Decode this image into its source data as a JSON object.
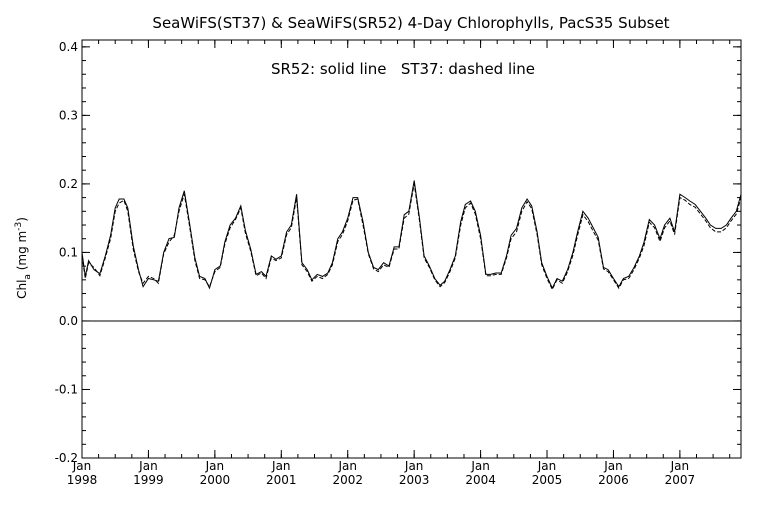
{
  "chart_data": {
    "type": "line",
    "title": "SeaWiFS(ST37) & SeaWiFS(SR52) 4-Day Chlorophylls, PacS35 Subset",
    "annotation": "SR52: solid line   ST37: dashed line",
    "ylabel": {
      "main": "Chl",
      "sub": "a",
      "units_pre": " (mg m",
      "units_sup": "-3",
      "units_post": ")"
    },
    "xlim": [
      1998.0,
      2007.92
    ],
    "ylim": [
      -0.2,
      0.41
    ],
    "grid": false,
    "y_ticks": [
      {
        "value": -0.2,
        "label": "-0.2"
      },
      {
        "value": -0.1,
        "label": "-0.1"
      },
      {
        "value": 0.0,
        "label": "0.0"
      },
      {
        "value": 0.1,
        "label": "0.1"
      },
      {
        "value": 0.2,
        "label": "0.2"
      },
      {
        "value": 0.3,
        "label": "0.3"
      },
      {
        "value": 0.4,
        "label": "0.4"
      }
    ],
    "x_ticks": [
      {
        "value": 1998,
        "month": "Jan",
        "year": "1998"
      },
      {
        "value": 1999,
        "month": "Jan",
        "year": "1999"
      },
      {
        "value": 2000,
        "month": "Jan",
        "year": "2000"
      },
      {
        "value": 2001,
        "month": "Jan",
        "year": "2001"
      },
      {
        "value": 2002,
        "month": "Jan",
        "year": "2002"
      },
      {
        "value": 2003,
        "month": "Jan",
        "year": "2003"
      },
      {
        "value": 2004,
        "month": "Jan",
        "year": "2004"
      },
      {
        "value": 2005,
        "month": "Jan",
        "year": "2005"
      },
      {
        "value": 2006,
        "month": "Jan",
        "year": "2006"
      },
      {
        "value": 2007,
        "month": "Jan",
        "year": "2007"
      }
    ],
    "reference_line": 0.0,
    "series": [
      {
        "name": "SR52",
        "style": "solid",
        "x": [
          1998.0,
          1998.05,
          1998.1,
          1998.18,
          1998.27,
          1998.35,
          1998.43,
          1998.5,
          1998.56,
          1998.63,
          1998.69,
          1998.77,
          1998.85,
          1998.92,
          1999.0,
          1999.08,
          1999.15,
          1999.23,
          1999.31,
          1999.39,
          1999.46,
          1999.54,
          1999.62,
          1999.7,
          1999.77,
          1999.85,
          1999.92,
          2000.0,
          2000.08,
          2000.15,
          2000.23,
          2000.31,
          2000.39,
          2000.46,
          2000.54,
          2000.62,
          2000.7,
          2000.77,
          2000.85,
          2000.92,
          2001.0,
          2001.08,
          2001.15,
          2001.23,
          2001.31,
          2001.39,
          2001.46,
          2001.54,
          2001.62,
          2001.7,
          2001.77,
          2001.85,
          2001.92,
          2002.0,
          2002.08,
          2002.15,
          2002.23,
          2002.31,
          2002.39,
          2002.46,
          2002.54,
          2002.62,
          2002.7,
          2002.77,
          2002.85,
          2002.92,
          2003.0,
          2003.08,
          2003.15,
          2003.23,
          2003.31,
          2003.39,
          2003.46,
          2003.54,
          2003.62,
          2003.7,
          2003.77,
          2003.85,
          2003.92,
          2004.0,
          2004.08,
          2004.15,
          2004.23,
          2004.31,
          2004.39,
          2004.46,
          2004.54,
          2004.62,
          2004.7,
          2004.77,
          2004.85,
          2004.92,
          2005.0,
          2005.08,
          2005.15,
          2005.23,
          2005.31,
          2005.39,
          2005.46,
          2005.54,
          2005.62,
          2005.7,
          2005.77,
          2005.85,
          2005.92,
          2006.0,
          2006.08,
          2006.15,
          2006.23,
          2006.31,
          2006.39,
          2006.46,
          2006.54,
          2006.62,
          2006.7,
          2006.77,
          2006.85,
          2006.92,
          2007.0,
          2007.08,
          2007.15,
          2007.23,
          2007.31,
          2007.39,
          2007.46,
          2007.54,
          2007.62,
          2007.7,
          2007.77,
          2007.85,
          2007.92
        ],
        "y": [
          0.1,
          0.065,
          0.088,
          0.075,
          0.069,
          0.095,
          0.125,
          0.165,
          0.178,
          0.178,
          0.165,
          0.11,
          0.075,
          0.05,
          0.062,
          0.06,
          0.058,
          0.1,
          0.12,
          0.122,
          0.165,
          0.19,
          0.142,
          0.092,
          0.065,
          0.062,
          0.048,
          0.075,
          0.08,
          0.115,
          0.14,
          0.15,
          0.168,
          0.132,
          0.105,
          0.068,
          0.072,
          0.065,
          0.095,
          0.09,
          0.095,
          0.13,
          0.14,
          0.185,
          0.085,
          0.075,
          0.06,
          0.068,
          0.065,
          0.07,
          0.085,
          0.12,
          0.13,
          0.15,
          0.18,
          0.18,
          0.145,
          0.1,
          0.078,
          0.075,
          0.085,
          0.08,
          0.108,
          0.108,
          0.155,
          0.16,
          0.205,
          0.15,
          0.095,
          0.08,
          0.062,
          0.052,
          0.058,
          0.075,
          0.095,
          0.145,
          0.17,
          0.175,
          0.16,
          0.125,
          0.068,
          0.068,
          0.07,
          0.07,
          0.095,
          0.125,
          0.135,
          0.165,
          0.178,
          0.168,
          0.13,
          0.085,
          0.065,
          0.048,
          0.062,
          0.058,
          0.075,
          0.1,
          0.13,
          0.16,
          0.15,
          0.135,
          0.122,
          0.078,
          0.075,
          0.062,
          0.05,
          0.062,
          0.065,
          0.078,
          0.095,
          0.115,
          0.148,
          0.14,
          0.12,
          0.14,
          0.15,
          0.13,
          0.185,
          0.18,
          0.175,
          0.17,
          0.16,
          0.15,
          0.14,
          0.135,
          0.135,
          0.14,
          0.15,
          0.16,
          0.185
        ]
      },
      {
        "name": "ST37",
        "style": "dashed",
        "x": [
          1998.0,
          1998.05,
          1998.1,
          1998.18,
          1998.27,
          1998.35,
          1998.43,
          1998.5,
          1998.56,
          1998.63,
          1998.69,
          1998.77,
          1998.85,
          1998.92,
          1999.0,
          1999.08,
          1999.15,
          1999.23,
          1999.31,
          1999.39,
          1999.46,
          1999.54,
          1999.62,
          1999.7,
          1999.77,
          1999.85,
          1999.92,
          2000.0,
          2000.08,
          2000.15,
          2000.23,
          2000.31,
          2000.39,
          2000.46,
          2000.54,
          2000.62,
          2000.7,
          2000.77,
          2000.85,
          2000.92,
          2001.0,
          2001.08,
          2001.15,
          2001.23,
          2001.31,
          2001.39,
          2001.46,
          2001.54,
          2001.62,
          2001.7,
          2001.77,
          2001.85,
          2001.92,
          2002.0,
          2002.08,
          2002.15,
          2002.23,
          2002.31,
          2002.39,
          2002.46,
          2002.54,
          2002.62,
          2002.7,
          2002.77,
          2002.85,
          2002.92,
          2003.0,
          2003.08,
          2003.15,
          2003.23,
          2003.31,
          2003.39,
          2003.46,
          2003.54,
          2003.62,
          2003.7,
          2003.77,
          2003.85,
          2003.92,
          2004.0,
          2004.08,
          2004.15,
          2004.23,
          2004.31,
          2004.39,
          2004.46,
          2004.54,
          2004.62,
          2004.7,
          2004.77,
          2004.85,
          2004.92,
          2005.0,
          2005.08,
          2005.15,
          2005.23,
          2005.31,
          2005.39,
          2005.46,
          2005.54,
          2005.62,
          2005.7,
          2005.77,
          2005.85,
          2005.92,
          2006.0,
          2006.08,
          2006.15,
          2006.23,
          2006.31,
          2006.39,
          2006.46,
          2006.54,
          2006.62,
          2006.7,
          2006.77,
          2006.85,
          2006.92,
          2007.0,
          2007.08,
          2007.15,
          2007.23,
          2007.31,
          2007.39,
          2007.46,
          2007.54,
          2007.62,
          2007.7,
          2007.77,
          2007.85,
          2007.92
        ],
        "y": [
          0.095,
          0.062,
          0.085,
          0.078,
          0.066,
          0.092,
          0.12,
          0.16,
          0.172,
          0.176,
          0.16,
          0.105,
          0.072,
          0.055,
          0.065,
          0.062,
          0.055,
          0.098,
          0.115,
          0.125,
          0.16,
          0.185,
          0.138,
          0.088,
          0.062,
          0.06,
          0.05,
          0.072,
          0.078,
          0.112,
          0.136,
          0.148,
          0.165,
          0.128,
          0.102,
          0.066,
          0.07,
          0.062,
          0.092,
          0.088,
          0.092,
          0.126,
          0.136,
          0.18,
          0.082,
          0.072,
          0.058,
          0.065,
          0.062,
          0.068,
          0.082,
          0.116,
          0.126,
          0.146,
          0.176,
          0.178,
          0.14,
          0.098,
          0.076,
          0.072,
          0.082,
          0.078,
          0.105,
          0.105,
          0.15,
          0.156,
          0.2,
          0.146,
          0.092,
          0.078,
          0.06,
          0.05,
          0.056,
          0.072,
          0.092,
          0.14,
          0.165,
          0.172,
          0.156,
          0.12,
          0.066,
          0.066,
          0.068,
          0.068,
          0.092,
          0.12,
          0.13,
          0.16,
          0.174,
          0.164,
          0.126,
          0.082,
          0.062,
          0.046,
          0.06,
          0.055,
          0.072,
          0.096,
          0.125,
          0.155,
          0.145,
          0.13,
          0.118,
          0.076,
          0.072,
          0.06,
          0.048,
          0.06,
          0.062,
          0.075,
          0.092,
          0.11,
          0.144,
          0.136,
          0.116,
          0.136,
          0.146,
          0.126,
          0.18,
          0.176,
          0.17,
          0.166,
          0.156,
          0.146,
          0.136,
          0.13,
          0.13,
          0.136,
          0.146,
          0.156,
          0.18
        ]
      }
    ]
  }
}
